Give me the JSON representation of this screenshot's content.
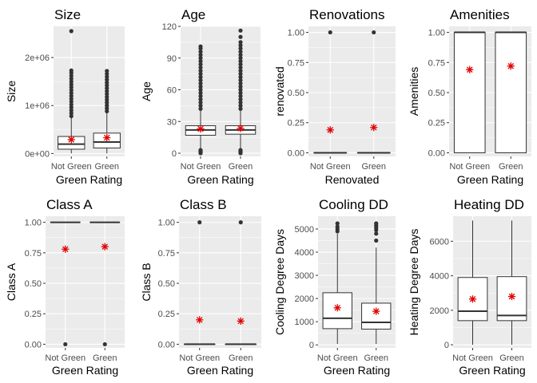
{
  "colors": {
    "panel_bg": "#ebebeb",
    "grid": "#ffffff",
    "box_fill": "#ffffff",
    "box_line": "#333333",
    "outlier": "#333333",
    "mean_marker": "#e00000",
    "tick_text": "#4d4d4d"
  },
  "chart_data": [
    {
      "type": "boxplot",
      "title": "Size",
      "xlabel": "Green Rating",
      "ylabel": "Size",
      "categories": [
        "Not Green",
        "Green"
      ],
      "ylim": [
        -60000,
        2650000
      ],
      "yticks": [
        0,
        1000000,
        2000000
      ],
      "ytick_labels": [
        "0e+00",
        "1e+06",
        "2e+06"
      ],
      "grid": true,
      "boxes": [
        {
          "min": 1624,
          "q1": 90000,
          "median": 195000,
          "q3": 355000,
          "max": 750000,
          "mean": 290000,
          "outliers": [
            780000,
            840000,
            900000,
            960000,
            1020000,
            1080000,
            1140000,
            1200000,
            1260000,
            1320000,
            1380000,
            1440000,
            1500000,
            1560000,
            1620000,
            1680000,
            1730000,
            2550000
          ]
        },
        {
          "min": 1624,
          "q1": 115000,
          "median": 240000,
          "q3": 425000,
          "max": 850000,
          "mean": 330000,
          "outliers": [
            880000,
            940000,
            1000000,
            1060000,
            1120000,
            1180000,
            1240000,
            1300000,
            1360000,
            1420000,
            1480000,
            1540000,
            1600000,
            1660000,
            1720000
          ]
        }
      ]
    },
    {
      "type": "boxplot",
      "title": "Age",
      "xlabel": "Green Rating",
      "ylabel": "Age",
      "categories": [
        "Not Green",
        "Green"
      ],
      "ylim": [
        -3,
        120
      ],
      "yticks": [
        0,
        30,
        60,
        90,
        120
      ],
      "ytick_labels": [
        "0",
        "30",
        "60",
        "90",
        "120"
      ],
      "grid": true,
      "boxes": [
        {
          "min": 4,
          "q1": 17,
          "median": 22,
          "q3": 26,
          "max": 40,
          "mean": 23,
          "outliers": [
            0,
            1,
            2,
            3,
            42,
            45,
            48,
            51,
            54,
            57,
            60,
            63,
            66,
            69,
            72,
            75,
            78,
            81,
            84,
            87,
            90,
            93,
            96,
            99,
            101
          ]
        },
        {
          "min": 4,
          "q1": 18,
          "median": 22,
          "q3": 26,
          "max": 40,
          "mean": 23.5,
          "outliers": [
            0,
            1,
            2,
            3,
            42,
            45,
            48,
            51,
            54,
            57,
            60,
            63,
            66,
            69,
            72,
            75,
            78,
            81,
            84,
            87,
            90,
            93,
            96,
            99,
            102,
            105,
            110,
            116
          ]
        }
      ]
    },
    {
      "type": "boxplot",
      "title": "Renovations",
      "xlabel": "Renovated",
      "ylabel": "renovated",
      "categories": [
        "Not Green",
        "Green"
      ],
      "ylim": [
        -0.03,
        1.05
      ],
      "yticks": [
        0,
        0.25,
        0.5,
        0.75,
        1.0
      ],
      "ytick_labels": [
        "0.00",
        "0.25",
        "0.50",
        "0.75",
        "1.00"
      ],
      "grid": true,
      "boxes": [
        {
          "min": 0,
          "q1": 0,
          "median": 0,
          "q3": 0,
          "max": 0,
          "mean": 0.19,
          "outliers": [
            1
          ]
        },
        {
          "min": 0,
          "q1": 0,
          "median": 0,
          "q3": 0,
          "max": 0,
          "mean": 0.21,
          "outliers": [
            1
          ]
        }
      ]
    },
    {
      "type": "boxplot",
      "title": "Amenities",
      "xlabel": "Green Rating",
      "ylabel": "Amenities",
      "categories": [
        "Not Green",
        "Green"
      ],
      "ylim": [
        -0.03,
        1.05
      ],
      "yticks": [
        0,
        0.25,
        0.5,
        0.75,
        1.0
      ],
      "ytick_labels": [
        "0.00",
        "0.25",
        "0.50",
        "0.75",
        "1.00"
      ],
      "grid": true,
      "boxes": [
        {
          "min": 0,
          "q1": 0,
          "median": 1,
          "q3": 1,
          "max": 1,
          "mean": 0.69,
          "outliers": []
        },
        {
          "min": 0,
          "q1": 0,
          "median": 1,
          "q3": 1,
          "max": 1,
          "mean": 0.72,
          "outliers": []
        }
      ]
    },
    {
      "type": "boxplot",
      "title": "Class A",
      "xlabel": "Green Rating",
      "ylabel": "Class A",
      "categories": [
        "Not Green",
        "Green"
      ],
      "ylim": [
        -0.03,
        1.05
      ],
      "yticks": [
        0,
        0.25,
        0.5,
        0.75,
        1.0
      ],
      "ytick_labels": [
        "0.00",
        "0.25",
        "0.50",
        "0.75",
        "1.00"
      ],
      "grid": true,
      "boxes": [
        {
          "min": 1,
          "q1": 1,
          "median": 1,
          "q3": 1,
          "max": 1,
          "mean": 0.78,
          "outliers": [
            0
          ]
        },
        {
          "min": 1,
          "q1": 1,
          "median": 1,
          "q3": 1,
          "max": 1,
          "mean": 0.8,
          "outliers": [
            0
          ]
        }
      ]
    },
    {
      "type": "boxplot",
      "title": "Class B",
      "xlabel": "Green Rating",
      "ylabel": "Class B",
      "categories": [
        "Not Green",
        "Green"
      ],
      "ylim": [
        -0.03,
        1.05
      ],
      "yticks": [
        0,
        0.25,
        0.5,
        0.75,
        1.0
      ],
      "ytick_labels": [
        "0.00",
        "0.25",
        "0.50",
        "0.75",
        "1.00"
      ],
      "grid": true,
      "boxes": [
        {
          "min": 0,
          "q1": 0,
          "median": 0,
          "q3": 0,
          "max": 0,
          "mean": 0.2,
          "outliers": [
            1
          ]
        },
        {
          "min": 0,
          "q1": 0,
          "median": 0,
          "q3": 0,
          "max": 0,
          "mean": 0.19,
          "outliers": [
            1
          ]
        }
      ]
    },
    {
      "type": "boxplot",
      "title": "Cooling DD",
      "xlabel": "Green Rating",
      "ylabel": "Cooling Degree Days",
      "categories": [
        "Not Green",
        "Green"
      ],
      "ylim": [
        -130,
        5550
      ],
      "yticks": [
        0,
        1000,
        2000,
        3000,
        4000,
        5000
      ],
      "ytick_labels": [
        "0",
        "1000",
        "2000",
        "3000",
        "4000",
        "5000"
      ],
      "grid": true,
      "boxes": [
        {
          "min": 40,
          "q1": 700,
          "median": 1150,
          "q3": 2250,
          "max": 4800,
          "mean": 1600,
          "outliers": [
            4900,
            5000,
            5100,
            5240
          ]
        },
        {
          "min": 40,
          "q1": 680,
          "median": 970,
          "q3": 1800,
          "max": 4200,
          "mean": 1450,
          "outliers": [
            4500,
            4800,
            4950,
            5050,
            5150,
            5240
          ]
        }
      ]
    },
    {
      "type": "boxplot",
      "title": "Heating DD",
      "xlabel": "Green Rating",
      "ylabel": "Heating Degree Days",
      "categories": [
        "Not Green",
        "Green"
      ],
      "ylim": [
        -180,
        7450
      ],
      "yticks": [
        0,
        2000,
        4000,
        6000
      ],
      "ytick_labels": [
        "0",
        "2000",
        "4000",
        "6000"
      ],
      "grid": true,
      "boxes": [
        {
          "min": 0,
          "q1": 1400,
          "median": 1950,
          "q3": 3900,
          "max": 7200,
          "mean": 2650,
          "outliers": []
        },
        {
          "min": 0,
          "q1": 1400,
          "median": 1700,
          "q3": 3950,
          "max": 7200,
          "mean": 2800,
          "outliers": []
        }
      ]
    }
  ]
}
